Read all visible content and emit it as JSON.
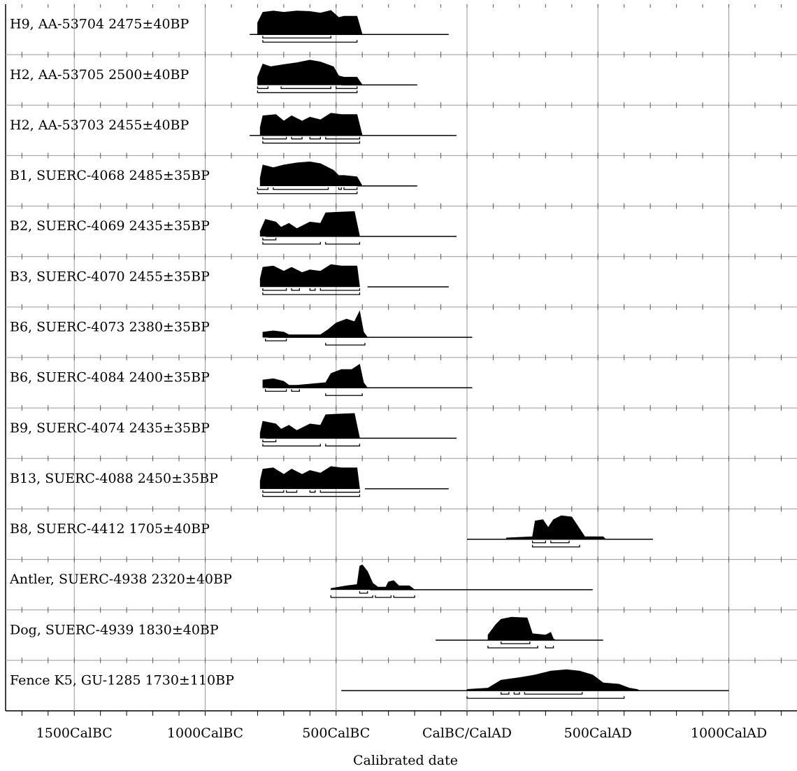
{
  "chart_data": {
    "type": "radiocarbon-calibration",
    "xlabel": "Calibrated date",
    "x_unit": "calendar year (negative = BC, positive = AD)",
    "xlim": [
      -1700,
      1300
    ],
    "gridline_years": [
      -1500,
      -1000,
      -500,
      0,
      500,
      1000
    ],
    "minor_tick_years": [
      -1700,
      -1600,
      -1500,
      -1400,
      -1300,
      -1200,
      -1100,
      -1000,
      -900,
      -800,
      -700,
      -600,
      -500,
      -400,
      -300,
      -200,
      -100,
      0,
      100,
      200,
      300,
      400,
      500,
      600,
      700,
      800,
      900,
      1000,
      1100,
      1200
    ],
    "tick_labels": [
      {
        "year": -1500,
        "label": "1500CalBC"
      },
      {
        "year": -1000,
        "label": "1000CalBC"
      },
      {
        "year": -500,
        "label": "500CalBC"
      },
      {
        "year": 0,
        "label": "CalBC/CalAD"
      },
      {
        "year": 500,
        "label": "500CalAD"
      },
      {
        "year": 1000,
        "label": "1000CalAD"
      }
    ],
    "samples": [
      {
        "label": "H9, AA-53704  2475±40BP",
        "line": [
          -830,
          -70
        ],
        "dist": [
          [
            -800,
            0.45
          ],
          [
            -780,
            0.85
          ],
          [
            -740,
            0.9
          ],
          [
            -700,
            0.85
          ],
          [
            -650,
            0.9
          ],
          [
            -600,
            0.88
          ],
          [
            -560,
            0.82
          ],
          [
            -520,
            0.92
          ],
          [
            -490,
            0.65
          ],
          [
            -470,
            0.7
          ],
          [
            -420,
            0.7
          ],
          [
            -400,
            0.0
          ]
        ],
        "range_rows": [
          [
            [
              -780,
              -520
            ]
          ],
          [
            [
              -780,
              -420
            ]
          ]
        ]
      },
      {
        "label": "H2, AA-53705  2500±40BP",
        "line": [
          -480,
          -190
        ],
        "dist": [
          [
            -800,
            0.3
          ],
          [
            -780,
            0.8
          ],
          [
            -750,
            0.7
          ],
          [
            -700,
            0.78
          ],
          [
            -650,
            0.85
          ],
          [
            -600,
            0.95
          ],
          [
            -560,
            0.88
          ],
          [
            -510,
            0.7
          ],
          [
            -490,
            0.35
          ],
          [
            -470,
            0.3
          ],
          [
            -420,
            0.3
          ],
          [
            -400,
            0.0
          ]
        ],
        "range_rows": [
          [
            [
              -800,
              -760
            ],
            [
              -710,
              -520
            ],
            [
              -500,
              -420
            ]
          ],
          [
            [
              -800,
              -420
            ]
          ]
        ]
      },
      {
        "label": "H2, AA-53703  2455±40BP",
        "line": [
          -830,
          -40
        ],
        "dist": [
          [
            -790,
            0.3
          ],
          [
            -780,
            0.75
          ],
          [
            -730,
            0.8
          ],
          [
            -700,
            0.55
          ],
          [
            -670,
            0.75
          ],
          [
            -630,
            0.55
          ],
          [
            -600,
            0.7
          ],
          [
            -560,
            0.6
          ],
          [
            -520,
            0.85
          ],
          [
            -480,
            0.8
          ],
          [
            -420,
            0.8
          ],
          [
            -400,
            0.0
          ]
        ],
        "range_rows": [
          [
            [
              -780,
              -690
            ],
            [
              -670,
              -630
            ],
            [
              -600,
              -560
            ],
            [
              -540,
              -410
            ]
          ],
          [
            [
              -780,
              -410
            ]
          ]
        ]
      },
      {
        "label": "B1, SUERC-4068  2485±35BP",
        "line": [
          -420,
          -190
        ],
        "dist": [
          [
            -790,
            0.3
          ],
          [
            -780,
            0.8
          ],
          [
            -740,
            0.7
          ],
          [
            -700,
            0.8
          ],
          [
            -650,
            0.88
          ],
          [
            -600,
            0.92
          ],
          [
            -560,
            0.85
          ],
          [
            -510,
            0.6
          ],
          [
            -490,
            0.4
          ],
          [
            -470,
            0.4
          ],
          [
            -420,
            0.35
          ],
          [
            -400,
            0.0
          ]
        ],
        "range_rows": [
          [
            [
              -800,
              -760
            ],
            [
              -740,
              -530
            ],
            [
              -490,
              -480
            ],
            [
              -470,
              -420
            ]
          ],
          [
            [
              -800,
              -420
            ]
          ]
        ]
      },
      {
        "label": "B2, SUERC-4069  2435±35BP",
        "line": [
          -770,
          -40
        ],
        "dist": [
          [
            -790,
            0.2
          ],
          [
            -770,
            0.65
          ],
          [
            -730,
            0.55
          ],
          [
            -710,
            0.35
          ],
          [
            -680,
            0.5
          ],
          [
            -650,
            0.3
          ],
          [
            -600,
            0.55
          ],
          [
            -560,
            0.5
          ],
          [
            -540,
            0.9
          ],
          [
            -500,
            0.92
          ],
          [
            -430,
            0.95
          ],
          [
            -410,
            0.0
          ]
        ],
        "range_rows": [
          [
            [
              -780,
              -730
            ]
          ],
          [
            [
              -780,
              -560
            ],
            [
              -540,
              -410
            ]
          ]
        ]
      },
      {
        "label": "B3, SUERC-4070  2455±35BP",
        "line": [
          -380,
          -70
        ],
        "dist": [
          [
            -790,
            0.3
          ],
          [
            -780,
            0.75
          ],
          [
            -740,
            0.8
          ],
          [
            -700,
            0.6
          ],
          [
            -670,
            0.75
          ],
          [
            -630,
            0.55
          ],
          [
            -600,
            0.65
          ],
          [
            -560,
            0.6
          ],
          [
            -520,
            0.85
          ],
          [
            -480,
            0.8
          ],
          [
            -420,
            0.8
          ],
          [
            -410,
            0.0
          ]
        ],
        "range_rows": [
          [
            [
              -780,
              -690
            ],
            [
              -670,
              -640
            ],
            [
              -600,
              -580
            ],
            [
              -560,
              -410
            ]
          ],
          [
            [
              -780,
              -410
            ]
          ]
        ]
      },
      {
        "label": "B6, SUERC-4073  2380±35BP",
        "line": [
          -760,
          20
        ],
        "dist": [
          [
            -780,
            0.2
          ],
          [
            -740,
            0.25
          ],
          [
            -700,
            0.2
          ],
          [
            -680,
            0.1
          ],
          [
            -560,
            0.1
          ],
          [
            -530,
            0.3
          ],
          [
            -500,
            0.55
          ],
          [
            -460,
            0.7
          ],
          [
            -430,
            0.6
          ],
          [
            -410,
            1.0
          ],
          [
            -395,
            0.2
          ],
          [
            -380,
            0.0
          ]
        ],
        "range_rows": [
          [
            [
              -770,
              -690
            ]
          ],
          [
            [
              -540,
              -390
            ]
          ]
        ]
      },
      {
        "label": "B6, SUERC-4084  2400±35BP",
        "line": [
          -760,
          20
        ],
        "dist": [
          [
            -780,
            0.3
          ],
          [
            -740,
            0.35
          ],
          [
            -700,
            0.25
          ],
          [
            -680,
            0.1
          ],
          [
            -650,
            0.1
          ],
          [
            -540,
            0.2
          ],
          [
            -520,
            0.55
          ],
          [
            -480,
            0.7
          ],
          [
            -440,
            0.7
          ],
          [
            -410,
            0.9
          ],
          [
            -395,
            0.2
          ],
          [
            -380,
            0.0
          ]
        ],
        "range_rows": [
          [
            [
              -770,
              -690
            ],
            [
              -670,
              -640
            ]
          ],
          [
            [
              -540,
              -400
            ]
          ]
        ]
      },
      {
        "label": "B9, SUERC-4074  2435±35BP",
        "line": [
          -770,
          -40
        ],
        "dist": [
          [
            -790,
            0.2
          ],
          [
            -780,
            0.65
          ],
          [
            -730,
            0.55
          ],
          [
            -710,
            0.35
          ],
          [
            -680,
            0.5
          ],
          [
            -650,
            0.3
          ],
          [
            -600,
            0.55
          ],
          [
            -560,
            0.5
          ],
          [
            -540,
            0.9
          ],
          [
            -500,
            0.92
          ],
          [
            -430,
            0.95
          ],
          [
            -410,
            0.0
          ]
        ],
        "range_rows": [
          [
            [
              -780,
              -730
            ]
          ],
          [
            [
              -780,
              -560
            ],
            [
              -540,
              -410
            ]
          ]
        ]
      },
      {
        "label": "B13, SUERC-4088  2450±35BP",
        "line": [
          -390,
          -70
        ],
        "dist": [
          [
            -790,
            0.3
          ],
          [
            -780,
            0.75
          ],
          [
            -740,
            0.8
          ],
          [
            -700,
            0.55
          ],
          [
            -670,
            0.75
          ],
          [
            -630,
            0.55
          ],
          [
            -600,
            0.7
          ],
          [
            -560,
            0.6
          ],
          [
            -520,
            0.85
          ],
          [
            -480,
            0.8
          ],
          [
            -420,
            0.8
          ],
          [
            -410,
            0.0
          ]
        ],
        "range_rows": [
          [
            [
              -780,
              -700
            ],
            [
              -690,
              -650
            ],
            [
              -600,
              -580
            ],
            [
              -560,
              -410
            ]
          ],
          [
            [
              -780,
              -410
            ]
          ]
        ]
      },
      {
        "label": "B8, SUERC-4412  1705±40BP",
        "line": [
          0,
          710
        ],
        "dist": [
          [
            150,
            0.05
          ],
          [
            250,
            0.1
          ],
          [
            260,
            0.7
          ],
          [
            290,
            0.75
          ],
          [
            310,
            0.45
          ],
          [
            330,
            0.75
          ],
          [
            360,
            0.9
          ],
          [
            400,
            0.85
          ],
          [
            430,
            0.4
          ],
          [
            450,
            0.1
          ],
          [
            520,
            0.1
          ],
          [
            530,
            0.0
          ]
        ],
        "range_rows": [
          [
            [
              250,
              300
            ],
            [
              320,
              390
            ]
          ],
          [
            [
              250,
              430
            ]
          ]
        ]
      },
      {
        "label": "Antler, SUERC-4938  2320±40BP",
        "line": [
          -370,
          480
        ],
        "dist": [
          [
            -520,
            0.05
          ],
          [
            -460,
            0.15
          ],
          [
            -420,
            0.2
          ],
          [
            -410,
            0.9
          ],
          [
            -400,
            0.95
          ],
          [
            -380,
            0.7
          ],
          [
            -360,
            0.25
          ],
          [
            -340,
            0.1
          ],
          [
            -310,
            0.1
          ],
          [
            -300,
            0.3
          ],
          [
            -280,
            0.35
          ],
          [
            -260,
            0.15
          ],
          [
            -220,
            0.15
          ],
          [
            -200,
            0.0
          ]
        ],
        "range_rows": [
          [
            [
              -410,
              -380
            ]
          ],
          [
            [
              -520,
              -360
            ],
            [
              -350,
              -290
            ],
            [
              -280,
              -200
            ]
          ]
        ]
      },
      {
        "label": "Dog, SUERC-4939  1830±40BP",
        "line": [
          -120,
          520
        ],
        "dist": [
          [
            80,
            0.2
          ],
          [
            110,
            0.6
          ],
          [
            130,
            0.8
          ],
          [
            170,
            0.88
          ],
          [
            230,
            0.85
          ],
          [
            250,
            0.25
          ],
          [
            300,
            0.2
          ],
          [
            320,
            0.3
          ],
          [
            330,
            0.05
          ],
          [
            340,
            0.0
          ]
        ],
        "range_rows": [
          [
            [
              130,
              240
            ]
          ],
          [
            [
              80,
              270
            ],
            [
              300,
              330
            ]
          ]
        ]
      },
      {
        "label": "Fence K5, GU-1285  1730±110BP",
        "line": [
          -480,
          1000
        ],
        "dist": [
          [
            0,
            0.05
          ],
          [
            80,
            0.1
          ],
          [
            130,
            0.4
          ],
          [
            200,
            0.5
          ],
          [
            260,
            0.6
          ],
          [
            320,
            0.75
          ],
          [
            380,
            0.8
          ],
          [
            430,
            0.75
          ],
          [
            480,
            0.6
          ],
          [
            520,
            0.3
          ],
          [
            580,
            0.25
          ],
          [
            620,
            0.1
          ],
          [
            650,
            0.05
          ],
          [
            660,
            0.0
          ]
        ],
        "range_rows": [
          [
            [
              130,
              160
            ],
            [
              180,
              200
            ],
            [
              220,
              440
            ]
          ],
          [
            [
              0,
              600
            ]
          ]
        ]
      }
    ]
  }
}
